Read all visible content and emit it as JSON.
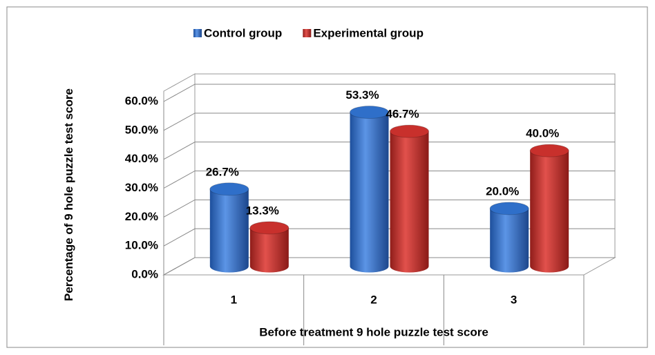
{
  "chart_data": {
    "type": "bar",
    "y_axis_label": "Percentage of 9 hole puzzle test score",
    "x_axis_label": "Before treatment 9 hole puzzle test score",
    "categories": [
      "1",
      "2",
      "3"
    ],
    "series": [
      {
        "name": "Control group",
        "color": "#2f6fc9",
        "values": [
          26.7,
          53.3,
          20.0
        ],
        "value_labels": [
          "26.7%",
          "53.3%",
          "20.0%"
        ]
      },
      {
        "name": "Experimental group",
        "color": "#c8302c",
        "values": [
          13.3,
          46.7,
          40.0
        ],
        "value_labels": [
          "13.3%",
          "46.7%",
          "40.0%"
        ]
      }
    ],
    "ylim": [
      0,
      60
    ],
    "yticks": [
      {
        "value": 0,
        "label": "0.0%"
      },
      {
        "value": 10,
        "label": "10.0%"
      },
      {
        "value": 20,
        "label": "20.0%"
      },
      {
        "value": 30,
        "label": "30.0%"
      },
      {
        "value": 40,
        "label": "40.0%"
      },
      {
        "value": 50,
        "label": "50.0%"
      },
      {
        "value": 60,
        "label": "60.0%"
      }
    ],
    "grid": true,
    "legend": "top"
  }
}
